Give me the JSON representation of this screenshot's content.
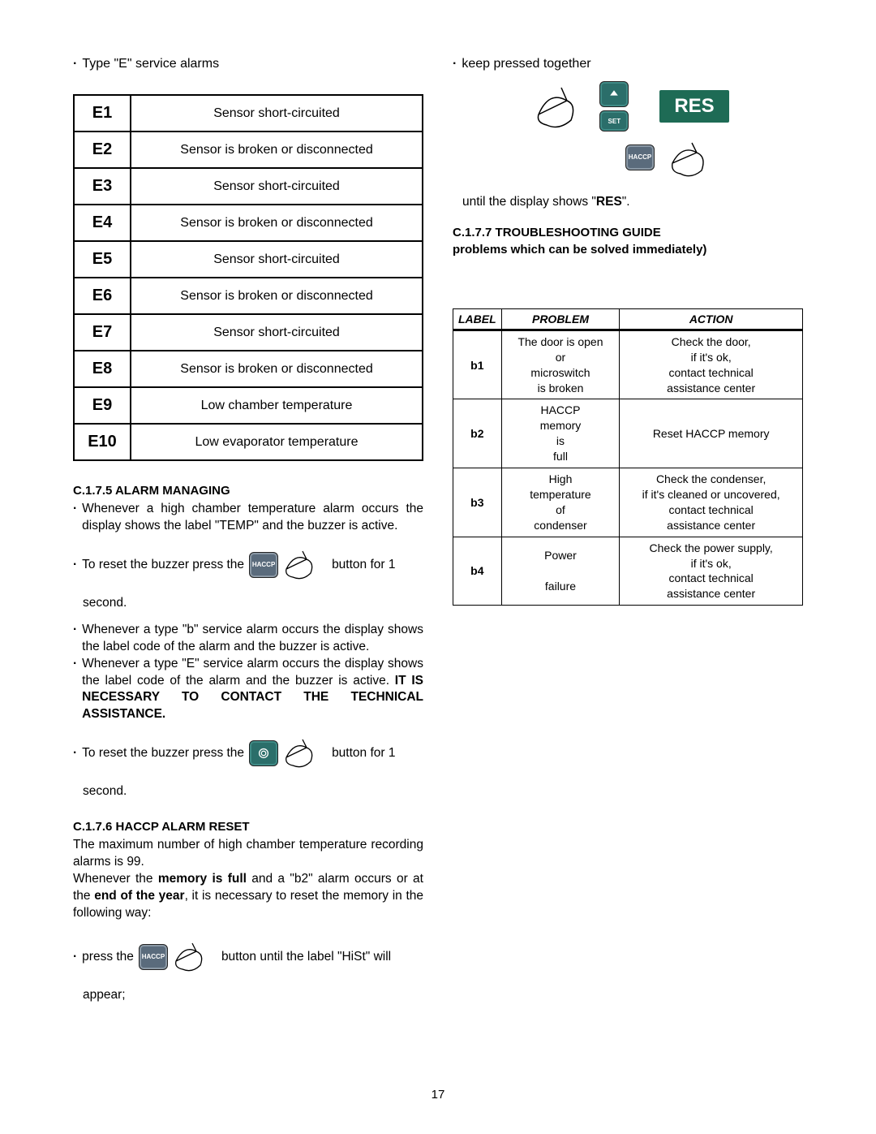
{
  "left": {
    "intro": "Type \"E\" service alarms",
    "alarms": [
      {
        "code": "E1",
        "desc": "Sensor short-circuited"
      },
      {
        "code": "E2",
        "desc": "Sensor is broken or disconnected"
      },
      {
        "code": "E3",
        "desc": "Sensor short-circuited"
      },
      {
        "code": "E4",
        "desc": "Sensor is broken or disconnected"
      },
      {
        "code": "E5",
        "desc": "Sensor short-circuited"
      },
      {
        "code": "E6",
        "desc": "Sensor is broken or disconnected"
      },
      {
        "code": "E7",
        "desc": "Sensor short-circuited"
      },
      {
        "code": "E8",
        "desc": "Sensor is broken or disconnected"
      },
      {
        "code": "E9",
        "desc": "Low chamber temperature"
      },
      {
        "code": "E10",
        "desc": "Low evaporator temperature"
      }
    ],
    "s175_head": "C.1.7.5 ALARM MANAGING",
    "s175_b1": "Whenever a high chamber temperature alarm occurs the display shows the label \"TEMP\" and the buzzer is active.",
    "s175_reset_pre": "To reset the buzzer press the",
    "s175_reset_post": "button for 1",
    "s175_second": "second.",
    "s175_b2": "Whenever a type \"b\" service alarm occurs the display shows the label code of the alarm and the buzzer is active.",
    "s175_b3a": "Whenever a type \"E\" service alarm occurs the display shows the label code of the alarm and the buzzer is active.  ",
    "s175_b3b": "IT IS NECESSARY TO CONTACT THE TECHNICAL ASSISTANCE.",
    "s176_head": "C.1.7.6 HACCP ALARM RESET",
    "s176_p1": "The maximum number of high chamber temperature recording alarms is 99.",
    "s176_p2a": "Whenever the ",
    "s176_p2b": "memory is full",
    "s176_p2c": " and a \"b2\" alarm occurs or at the ",
    "s176_p2d": "end of the year",
    "s176_p2e": ", it is necessary to reset the memory in the following way:",
    "s176_press_pre": "press the",
    "s176_press_post": "button until the label \"HiSt\" will",
    "s176_appear": "appear;",
    "btn_haccp": "HACCP"
  },
  "right": {
    "keep": "keep pressed together",
    "res": "RES",
    "until": "until the display shows \"RES\".",
    "s177_head": "C.1.7.7 TROUBLESHOOTING GUIDE",
    "s177_sub": "problems which can be solved immediately)",
    "tbl_head": {
      "c1": "LABEL",
      "c2": "PROBLEM",
      "c3": "ACTION"
    },
    "rows": [
      {
        "label": "b1",
        "problem": "The door is open\nor\nmicroswitch\nis broken",
        "action": "Check the door,\nif it's ok,\ncontact technical\nassistance center"
      },
      {
        "label": "b2",
        "problem": "HACCP\nmemory\nis\nfull",
        "action": "Reset HACCP memory"
      },
      {
        "label": "b3",
        "problem": "High\ntemperature\nof\ncondenser",
        "action": "Check the condenser,\nif it's cleaned or uncovered,\ncontact technical\nassistance center"
      },
      {
        "label": "b4",
        "problem": "Power\n\nfailure",
        "action": "Check the power supply,\nif it's ok,\ncontact technical\nassistance center"
      }
    ],
    "btn_set": "SET",
    "btn_haccp": "HACCP"
  },
  "page_number": "17"
}
